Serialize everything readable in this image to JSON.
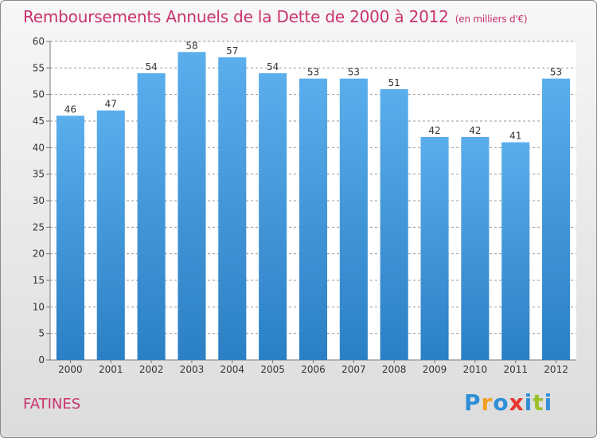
{
  "title": "Remboursements Annuels de la Dette de 2000 à 2012",
  "subtitle": "(en milliers d'€)",
  "place": "FATINES",
  "logo": {
    "letters": [
      "P",
      "r",
      "o",
      "x",
      "i",
      "t",
      "i"
    ],
    "colors": [
      "#2f8fd6",
      "#f0a020",
      "#2f8fd6",
      "#e8342e",
      "#2f8fd6",
      "#9ac02a",
      "#2f8fd6"
    ]
  },
  "colors": {
    "bar_top": "#5aaeec",
    "bar_bottom": "#2b7fc4",
    "grid": "#9a9a9a"
  },
  "chart_data": {
    "type": "bar",
    "categories": [
      "2000",
      "2001",
      "2002",
      "2003",
      "2004",
      "2005",
      "2006",
      "2007",
      "2008",
      "2009",
      "2010",
      "2011",
      "2012"
    ],
    "values": [
      46,
      47,
      54,
      58,
      57,
      54,
      53,
      53,
      51,
      42,
      42,
      41,
      53
    ],
    "ylim": [
      0,
      60
    ],
    "yticks": [
      0,
      5,
      10,
      15,
      20,
      25,
      30,
      35,
      40,
      45,
      50,
      55,
      60
    ],
    "grid": true,
    "data_labels": true
  }
}
